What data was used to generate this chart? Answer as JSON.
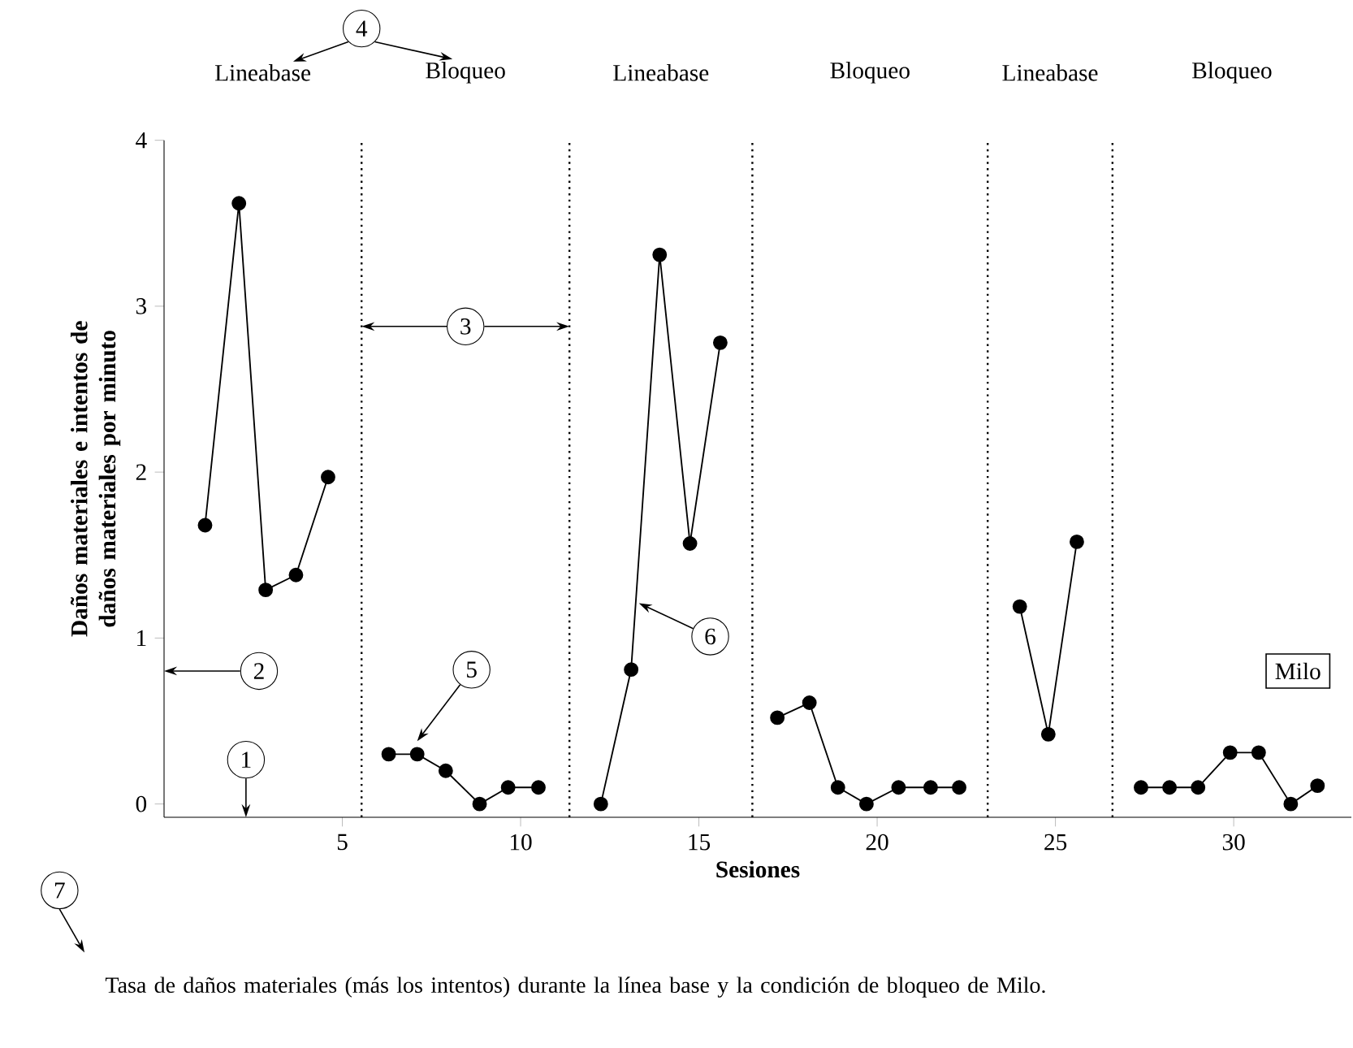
{
  "chart_data": {
    "type": "line",
    "xlabel": "Sesiones",
    "ylabel": "Daños materiales e intentos de daños materiales por minuto",
    "xlim": [
      0,
      33.3
    ],
    "ylim": [
      -0.08,
      4
    ],
    "xticks": [
      5,
      10,
      15,
      20,
      25,
      30
    ],
    "yticks": [
      0,
      1,
      2,
      3,
      4
    ],
    "marker": "circle",
    "line_style": "solid",
    "series": [
      {
        "color": "#000000",
        "x": [
          1.15,
          2.1,
          2.85,
          3.7,
          4.6
        ],
        "values": [
          1.68,
          3.62,
          1.29,
          1.38,
          1.97
        ]
      },
      {
        "color": "#000000",
        "x": [
          6.3,
          7.1,
          7.9,
          8.85,
          9.65,
          10.5
        ],
        "values": [
          0.3,
          0.3,
          0.2,
          0.0,
          0.1,
          0.1
        ]
      },
      {
        "color": "#000000",
        "x": [
          12.25,
          13.1,
          13.9,
          14.75,
          15.6
        ],
        "values": [
          0.0,
          0.81,
          3.31,
          1.57,
          2.78
        ]
      },
      {
        "color": "#000000",
        "x": [
          17.2,
          18.1,
          18.9,
          19.7,
          20.6,
          21.5,
          22.3
        ],
        "values": [
          0.52,
          0.61,
          0.1,
          0.0,
          0.1,
          0.1,
          0.1
        ]
      },
      {
        "color": "#000000",
        "x": [
          24.0,
          24.8,
          25.6
        ],
        "values": [
          1.19,
          0.42,
          1.58
        ]
      },
      {
        "color": "#000000",
        "x": [
          27.4,
          28.2,
          29.0,
          29.9,
          30.7,
          31.6,
          32.35
        ],
        "values": [
          0.1,
          0.1,
          0.1,
          0.31,
          0.31,
          0.0,
          0.11
        ]
      }
    ],
    "ref_lines": [
      {
        "axis": "x",
        "value": 5.54,
        "line_style": "dotted"
      },
      {
        "axis": "x",
        "value": 11.37,
        "line_style": "dotted"
      },
      {
        "axis": "x",
        "value": 16.5,
        "line_style": "dotted"
      },
      {
        "axis": "x",
        "value": 23.1,
        "line_style": "dotted"
      },
      {
        "axis": "x",
        "value": 26.6,
        "line_style": "dotted"
      }
    ],
    "annotations": [
      "Lineabase",
      "Bloqueo",
      "Lineabase",
      "Bloqueo",
      "Lineabase",
      "Bloqueo",
      "1",
      "2",
      "3",
      "4",
      "5",
      "6",
      "7",
      "Milo",
      "Tasa de daños materiales (más los intentos) durante la línea base y la condición de bloqueo de Milo."
    ]
  }
}
